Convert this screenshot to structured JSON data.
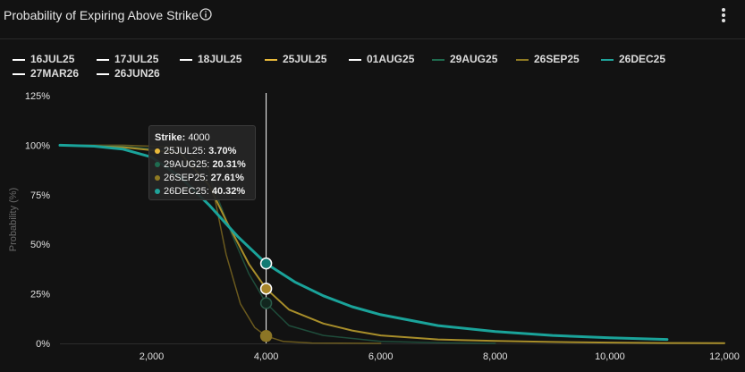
{
  "header": {
    "title": "Probability of Expiring Above Strike"
  },
  "icons": {
    "info": "info-circle-icon",
    "menu": "kebab-menu-icon"
  },
  "legend": [
    {
      "label": "16JUL25",
      "color": "#ffffff"
    },
    {
      "label": "17JUL25",
      "color": "#ffffff"
    },
    {
      "label": "18JUL25",
      "color": "#ffffff"
    },
    {
      "label": "25JUL25",
      "color": "#e8b93a"
    },
    {
      "label": "01AUG25",
      "color": "#ffffff"
    },
    {
      "label": "29AUG25",
      "color": "#1f6b4f"
    },
    {
      "label": "26SEP25",
      "color": "#8f7a22"
    },
    {
      "label": "26DEC25",
      "color": "#1fa39a"
    },
    {
      "label": "27MAR26",
      "color": "#ffffff"
    },
    {
      "label": "26JUN26",
      "color": "#ffffff"
    }
  ],
  "tooltip": {
    "strike_label": "Strike:",
    "strike_value": "4000",
    "rows": [
      {
        "label": "25JUL25:",
        "value": "3.70%",
        "color": "#e8b93a"
      },
      {
        "label": "29AUG25:",
        "value": "20.31%",
        "color": "#1f6b4f"
      },
      {
        "label": "26SEP25:",
        "value": "27.61%",
        "color": "#8f7a22"
      },
      {
        "label": "26DEC25:",
        "value": "40.32%",
        "color": "#1fa39a"
      }
    ]
  },
  "chart_data": {
    "type": "line",
    "ylabel": "Probability (%)",
    "xlim": [
      400,
      12000
    ],
    "ylim": [
      0,
      125
    ],
    "x_ticks": [
      {
        "value": 2000,
        "label": "2,000"
      },
      {
        "value": 4000,
        "label": "4,000"
      },
      {
        "value": 6000,
        "label": "6,000"
      },
      {
        "value": 8000,
        "label": "8,000"
      },
      {
        "value": 10000,
        "label": "10,000"
      },
      {
        "value": 12000,
        "label": "12,000"
      }
    ],
    "y_ticks": [
      {
        "value": 0,
        "label": "0%"
      },
      {
        "value": 25,
        "label": "25%"
      },
      {
        "value": 50,
        "label": "50%"
      },
      {
        "value": 75,
        "label": "75%"
      },
      {
        "value": 100,
        "label": "100%"
      },
      {
        "value": 125,
        "label": "125%"
      }
    ],
    "grid": false,
    "crosshair_x": 4000,
    "series": [
      {
        "name": "25JUL25",
        "color": "#6b5a1e",
        "width": 1.5,
        "points": [
          [
            400,
            100
          ],
          [
            1500,
            100
          ],
          [
            2500,
            99
          ],
          [
            3000,
            88
          ],
          [
            3300,
            45
          ],
          [
            3550,
            20
          ],
          [
            3800,
            8
          ],
          [
            4000,
            3.7
          ],
          [
            4300,
            1
          ],
          [
            4800,
            0.2
          ],
          [
            6000,
            0
          ]
        ]
      },
      {
        "name": "29AUG25",
        "color": "#1f4d3b",
        "width": 1.5,
        "points": [
          [
            400,
            100
          ],
          [
            1500,
            99.5
          ],
          [
            2500,
            97
          ],
          [
            3000,
            85
          ],
          [
            3400,
            55
          ],
          [
            3700,
            35
          ],
          [
            4000,
            20.31
          ],
          [
            4400,
            9
          ],
          [
            5000,
            4
          ],
          [
            6000,
            1
          ],
          [
            7000,
            0.3
          ],
          [
            8000,
            0
          ]
        ]
      },
      {
        "name": "26SEP25",
        "color": "#a88e2a",
        "width": 2,
        "points": [
          [
            400,
            100
          ],
          [
            1500,
            99
          ],
          [
            2500,
            96
          ],
          [
            3000,
            80
          ],
          [
            3300,
            62
          ],
          [
            3700,
            40
          ],
          [
            4000,
            27.61
          ],
          [
            4400,
            17
          ],
          [
            5000,
            10
          ],
          [
            5500,
            6.5
          ],
          [
            6000,
            4
          ],
          [
            7000,
            2
          ],
          [
            8000,
            1.2
          ],
          [
            9000,
            0.7
          ],
          [
            10000,
            0.4
          ],
          [
            11000,
            0.2
          ],
          [
            12000,
            0.1
          ]
        ]
      },
      {
        "name": "26DEC25",
        "color": "#1aa39a",
        "width": 3,
        "points": [
          [
            400,
            100
          ],
          [
            1000,
            99.5
          ],
          [
            1500,
            98
          ],
          [
            2000,
            94
          ],
          [
            2500,
            84
          ],
          [
            3000,
            70
          ],
          [
            3500,
            54
          ],
          [
            4000,
            40.32
          ],
          [
            4500,
            31
          ],
          [
            5000,
            24
          ],
          [
            5500,
            18.5
          ],
          [
            6000,
            14.5
          ],
          [
            7000,
            9
          ],
          [
            8000,
            6
          ],
          [
            9000,
            4
          ],
          [
            10000,
            2.8
          ],
          [
            11000,
            2
          ]
        ]
      }
    ],
    "highlight_points": [
      {
        "name": "25JUL25",
        "x": 4000,
        "y": 3.7,
        "color": "#8c7626",
        "stroke": "#8c7626"
      },
      {
        "name": "29AUG25",
        "x": 4000,
        "y": 20.31,
        "color": "#12271f",
        "stroke": "#2b5c49"
      },
      {
        "name": "26SEP25",
        "x": 4000,
        "y": 27.61,
        "color": "#a8862a",
        "stroke": "#ffffff"
      },
      {
        "name": "26DEC25",
        "x": 4000,
        "y": 40.32,
        "color": "#137a73",
        "stroke": "#ffffff"
      }
    ]
  }
}
